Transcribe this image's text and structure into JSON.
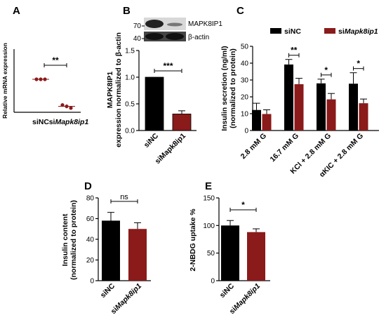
{
  "colors": {
    "black": "#000000",
    "red": "#8b1a1a",
    "blot_bg": "#d8d8d8"
  },
  "chart_data": [
    {
      "panel": "A",
      "type": "scatter",
      "ylabel": "Relative mRNA expression",
      "categories": [
        "siNC",
        "siMapk8ip1"
      ],
      "points": [
        [
          1.0,
          1.0,
          1.0
        ],
        [
          0.22,
          0.18,
          0.13
        ]
      ],
      "means": [
        1.0,
        0.18
      ],
      "sems": [
        0.0,
        0.03
      ],
      "significance": "**"
    },
    {
      "panel": "B",
      "type": "bar",
      "blot_labels": {
        "band1": "MAPK8IP1",
        "band2": "β-actin",
        "marker1": "70",
        "marker2": "40"
      },
      "ylabel_lines": [
        "MAPK8IP1",
        "expression normalized to β-actin"
      ],
      "categories": [
        "siNC",
        "siMapk8ip1"
      ],
      "values": [
        1.0,
        0.31
      ],
      "errors": [
        0.0,
        0.06
      ],
      "ylim": [
        0,
        1.5
      ],
      "yticks": [
        "0.0",
        "0.5",
        "1.0",
        "1.5"
      ],
      "significance": "***"
    },
    {
      "panel": "C",
      "type": "bar",
      "ylabel_lines": [
        "Insulin secretion (ng/ml)",
        "(normalized to protein)"
      ],
      "legend": [
        "siNC",
        "siMapk8ip1"
      ],
      "categories": [
        "2.8 mM G",
        "16.7 mM G",
        "KCl + 2.8 mM G",
        "αKIC + 2.8 mM G"
      ],
      "series": [
        {
          "name": "siNC",
          "values": [
            12.2,
            39.2,
            28.0,
            27.8
          ],
          "errors": [
            4.0,
            3.0,
            2.5,
            6.5
          ]
        },
        {
          "name": "siMapk8ip1",
          "values": [
            9.8,
            27.5,
            18.5,
            16.2
          ],
          "errors": [
            2.5,
            3.5,
            3.5,
            2.5
          ]
        }
      ],
      "ylim": [
        0,
        50
      ],
      "yticks": [
        "0",
        "10",
        "20",
        "30",
        "40",
        "50"
      ],
      "significance": [
        "",
        "**",
        "*",
        "*"
      ]
    },
    {
      "panel": "D",
      "type": "bar",
      "ylabel_lines": [
        "Insulin content",
        "(normalized to protein)"
      ],
      "categories": [
        "siNC",
        "siMapk8ip1"
      ],
      "values": [
        58,
        50
      ],
      "errors": [
        8,
        6
      ],
      "ylim": [
        0,
        80
      ],
      "yticks": [
        "0",
        "20",
        "40",
        "60",
        "80"
      ],
      "significance": "ns"
    },
    {
      "panel": "E",
      "type": "bar",
      "ylabel_lines": [
        "2-NBDG uptake %"
      ],
      "categories": [
        "siNC",
        "siMapk8ip1"
      ],
      "values": [
        100,
        88
      ],
      "errors": [
        9,
        6
      ],
      "ylim": [
        0,
        150
      ],
      "yticks": [
        "0",
        "50",
        "100",
        "150"
      ],
      "significance": "*"
    }
  ]
}
